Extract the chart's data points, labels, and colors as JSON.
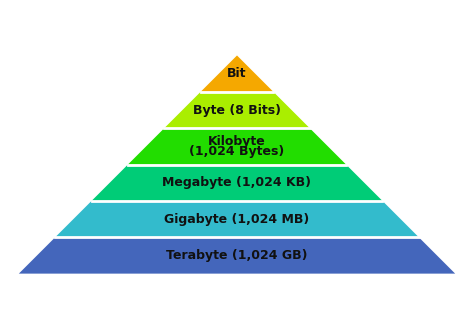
{
  "background_color": "#ffffff",
  "layers": [
    {
      "label": "Bit",
      "label2": "",
      "color": "#F5A800"
    },
    {
      "label": "Byte (8 Bits)",
      "label2": "",
      "color": "#AAEE00"
    },
    {
      "label": "Kilobyte",
      "label2": "(1,024 Bytes)",
      "color": "#22DD00"
    },
    {
      "label": "Megabyte (1,024 KB)",
      "label2": "",
      "color": "#00CC77"
    },
    {
      "label": "Gigabyte (1,024 MB)",
      "label2": "",
      "color": "#33BBCC"
    },
    {
      "label": "Terabyte (1,024 GB)",
      "label2": "",
      "color": "#4466BB"
    }
  ],
  "divider_color": "#FFFFFF",
  "divider_linewidth": 2.0,
  "text_color": "#111111",
  "font_size": 9.0,
  "font_weight": "bold"
}
